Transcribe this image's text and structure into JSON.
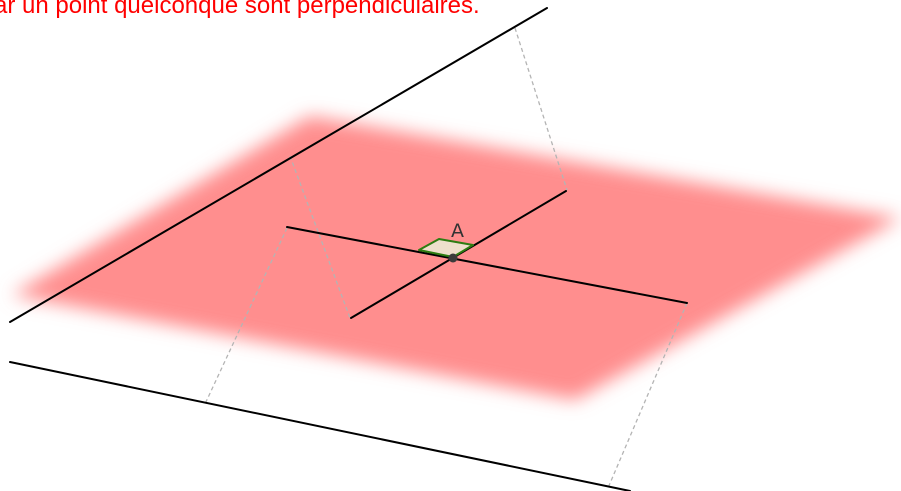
{
  "caption": {
    "text": "ar un point quelconque sont perpendiculaires.",
    "color": "#ff0000"
  },
  "figure": {
    "point_label": "A",
    "plane_color": "#ff8e8e",
    "line_color": "#000000",
    "guide_color": "#b4b4b4",
    "right_angle_fill": "#eee0cc",
    "right_angle_stroke": "#2e7d12",
    "point_color": "#3b3b3b"
  }
}
